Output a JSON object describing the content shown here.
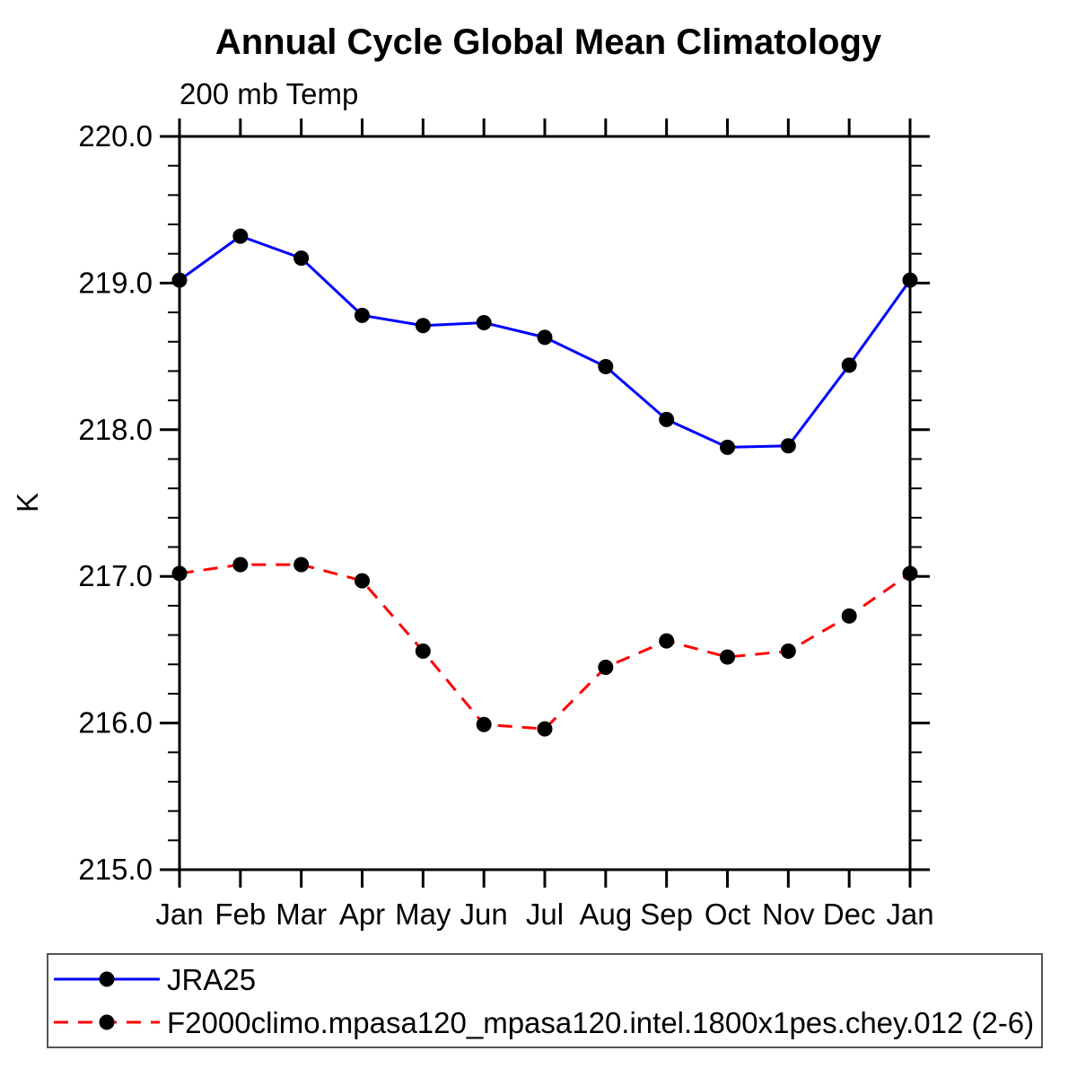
{
  "page": {
    "background": "#ffffff",
    "axis_color": "#000000",
    "legend_border_color": "#555555"
  },
  "chart_data": {
    "type": "line",
    "title": "Annual Cycle Global Mean Climatology",
    "subtitle": "200 mb Temp",
    "ylabel": "K",
    "xlabel": "",
    "grid": false,
    "legend_position": "bottom",
    "categories": [
      "Jan",
      "Feb",
      "Mar",
      "Apr",
      "May",
      "Jun",
      "Jul",
      "Aug",
      "Sep",
      "Oct",
      "Nov",
      "Dec",
      "Jan"
    ],
    "ylim": [
      215.0,
      220.0
    ],
    "ytick_interval": 1.0,
    "yminor_interval": 0.2,
    "ytick_labels": [
      "220.0",
      "219.0",
      "218.0",
      "217.0",
      "216.0",
      "215.0"
    ],
    "marker": "filled-circle",
    "marker_color": "#000000",
    "series": [
      {
        "name": "JRA25",
        "color": "#0000ff",
        "line_style": "solid",
        "dash": "",
        "values": [
          219.02,
          219.32,
          219.17,
          218.78,
          218.71,
          218.73,
          218.63,
          218.43,
          218.07,
          217.88,
          217.89,
          218.44,
          219.02
        ]
      },
      {
        "name": "F2000climo.mpasa120_mpasa120.intel.1800x1pes.chey.012 (2-6)",
        "color": "#ff0000",
        "line_style": "dashed",
        "dash": "16,11",
        "values": [
          217.02,
          217.08,
          217.08,
          216.97,
          216.49,
          215.99,
          215.96,
          216.38,
          216.56,
          216.45,
          216.49,
          216.73,
          217.02
        ]
      }
    ]
  }
}
